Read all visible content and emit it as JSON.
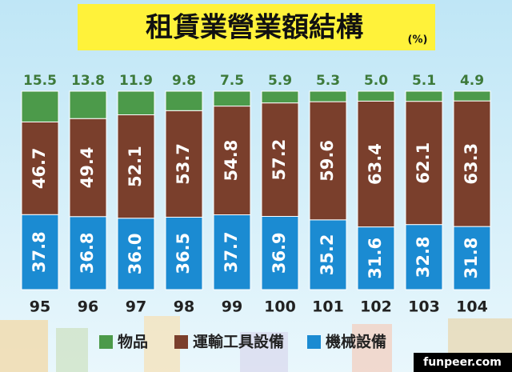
{
  "chart_data": {
    "type": "stacked_bar",
    "title": "租賃業營業額結構",
    "subtitle": "(%)",
    "categories": [
      "95",
      "96",
      "97",
      "98",
      "99",
      "100",
      "101",
      "102",
      "103",
      "104"
    ],
    "series": [
      {
        "name": "機械設備",
        "color": "#1b8bd2",
        "values": [
          37.8,
          36.8,
          36.0,
          36.5,
          37.7,
          36.9,
          35.2,
          31.6,
          32.8,
          31.8
        ],
        "value_labels": [
          "37.8",
          "36.8",
          "36.0",
          "36.5",
          "37.7",
          "36.9",
          "35.2",
          "31.6",
          "32.8",
          "31.8"
        ]
      },
      {
        "name": "運輸工具設備",
        "color": "#7a3f2c",
        "values": [
          46.7,
          49.4,
          52.1,
          53.7,
          54.8,
          57.2,
          59.6,
          63.4,
          62.1,
          63.3
        ],
        "value_labels": [
          "46.7",
          "49.4",
          "52.1",
          "53.7",
          "54.8",
          "57.2",
          "59.6",
          "63.4",
          "62.1",
          "63.3"
        ]
      },
      {
        "name": "物品",
        "color": "#4c9a4a",
        "values": [
          15.5,
          13.8,
          11.9,
          9.8,
          7.5,
          5.9,
          5.3,
          5.0,
          5.1,
          4.9
        ],
        "value_labels": [
          "15.5",
          "13.8",
          "11.9",
          "9.8",
          "7.5",
          "5.9",
          "5.3",
          "5.0",
          "5.1",
          "4.9"
        ]
      }
    ],
    "watermark": "funpeer.com"
  }
}
